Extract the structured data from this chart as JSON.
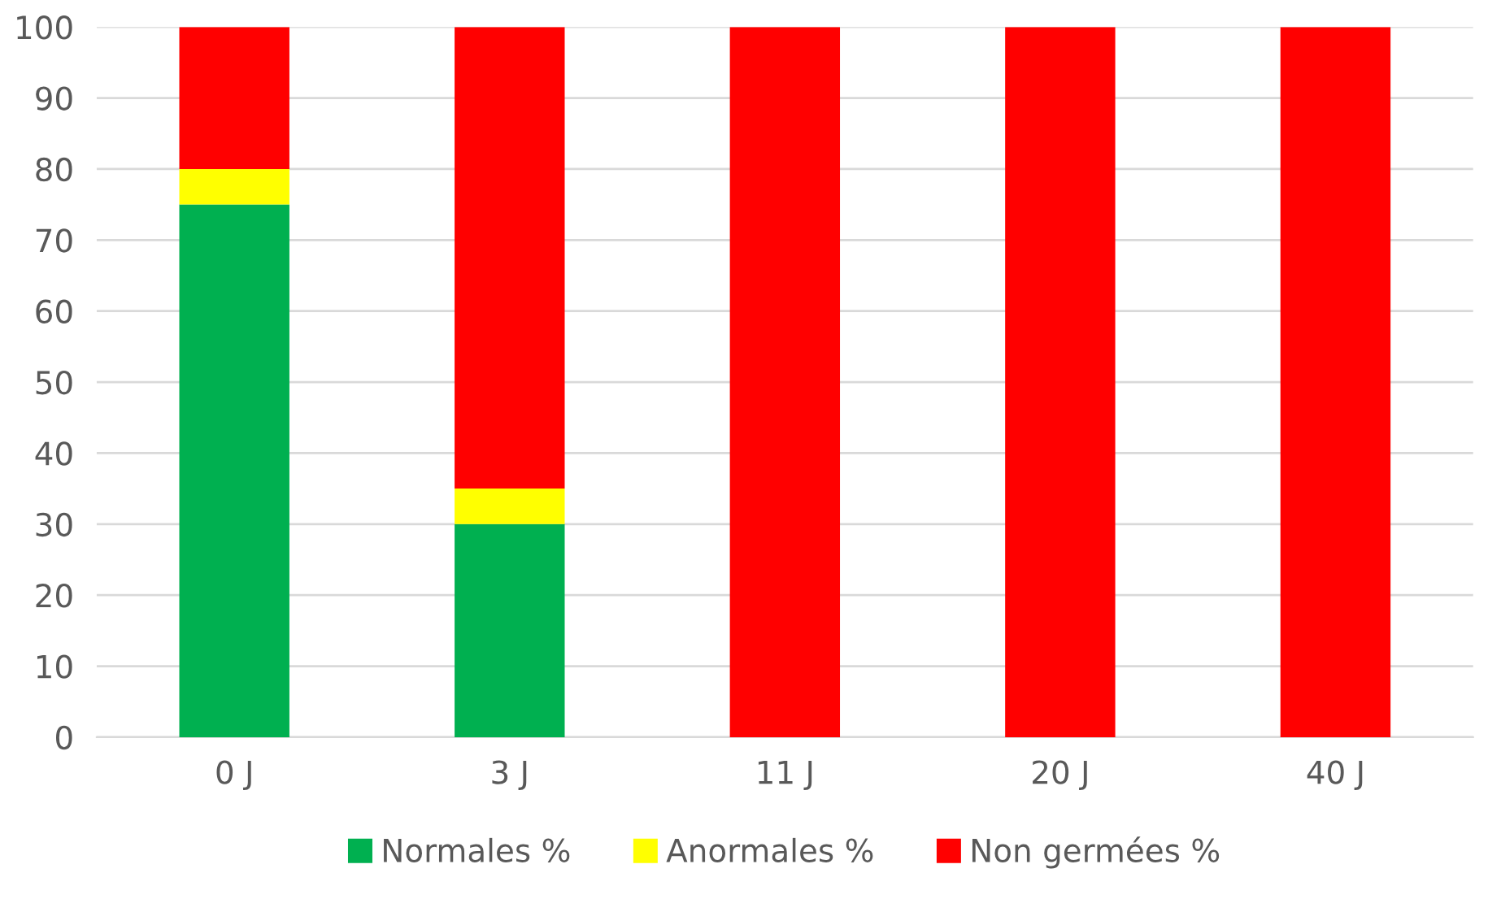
{
  "chart_data": {
    "type": "bar",
    "stacked": true,
    "categories": [
      "0 J",
      "3 J",
      "11 J",
      "20 J",
      "40 J"
    ],
    "series": [
      {
        "name": "Normales %",
        "color": "#00b050",
        "values": [
          75,
          30,
          0,
          0,
          0
        ]
      },
      {
        "name": "Anormales %",
        "color": "#ffff00",
        "values": [
          5,
          5,
          0,
          0,
          0
        ]
      },
      {
        "name": "Non germées %",
        "color": "#ff0000",
        "values": [
          20,
          65,
          100,
          100,
          100
        ]
      }
    ],
    "ylim": [
      0,
      100
    ],
    "yticks": [
      0,
      10,
      20,
      30,
      40,
      50,
      60,
      70,
      80,
      90,
      100
    ],
    "grid": "y",
    "legend": "bottom"
  }
}
